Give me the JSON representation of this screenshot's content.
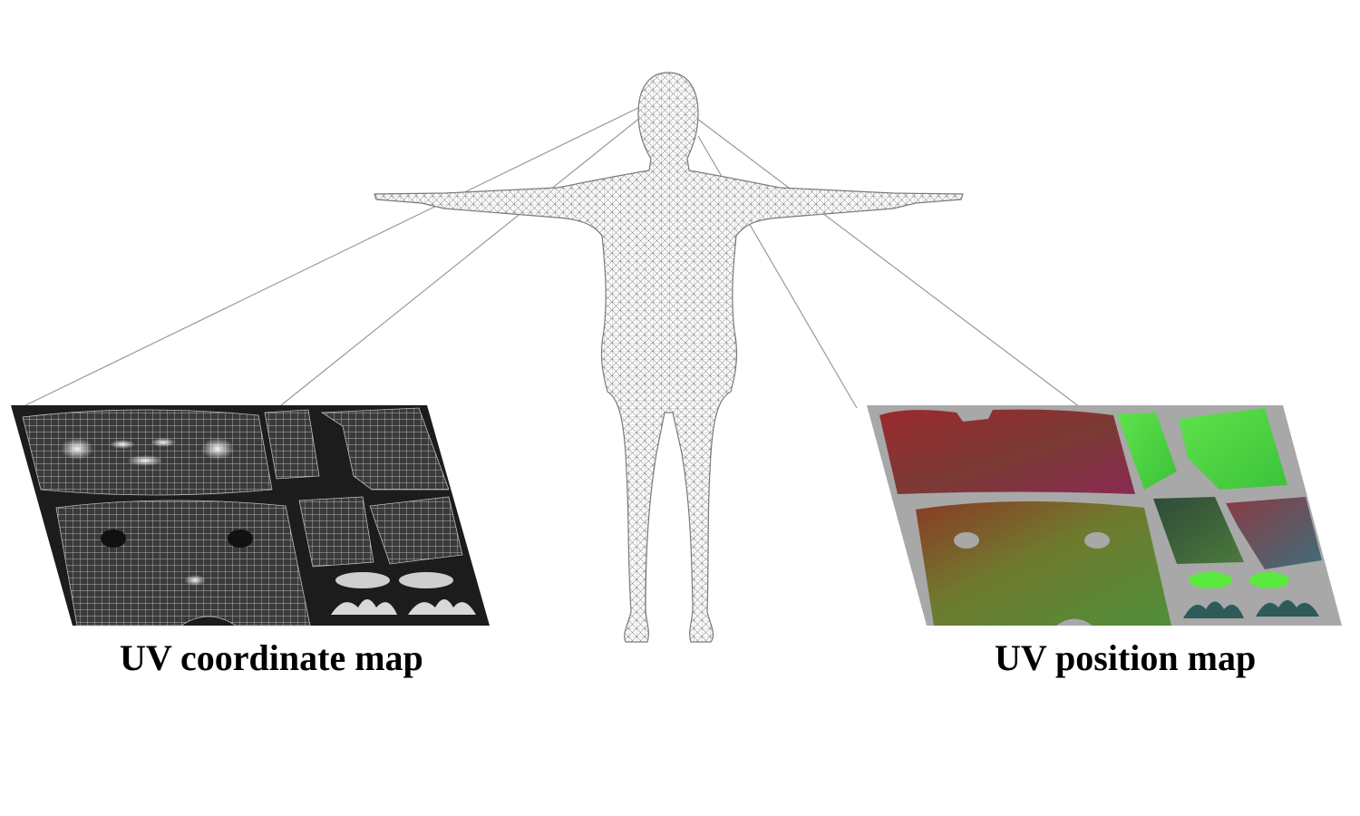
{
  "captions": {
    "left": "UV coordinate map",
    "right": "UV position map"
  },
  "colors": {
    "background": "#ffffff",
    "mesh_line": "#8a8a8a",
    "connector_line": "#9a9a9a",
    "coordinate_map_background": "#1c1c1c",
    "position_map_background": "#a8a8a8",
    "caption_text": "#000000"
  },
  "figure_parts": {
    "center": "human-body-wireframe-mesh",
    "left_panel": "uv-coordinate-map-wireframe",
    "right_panel": "uv-position-map-colored-charts"
  }
}
